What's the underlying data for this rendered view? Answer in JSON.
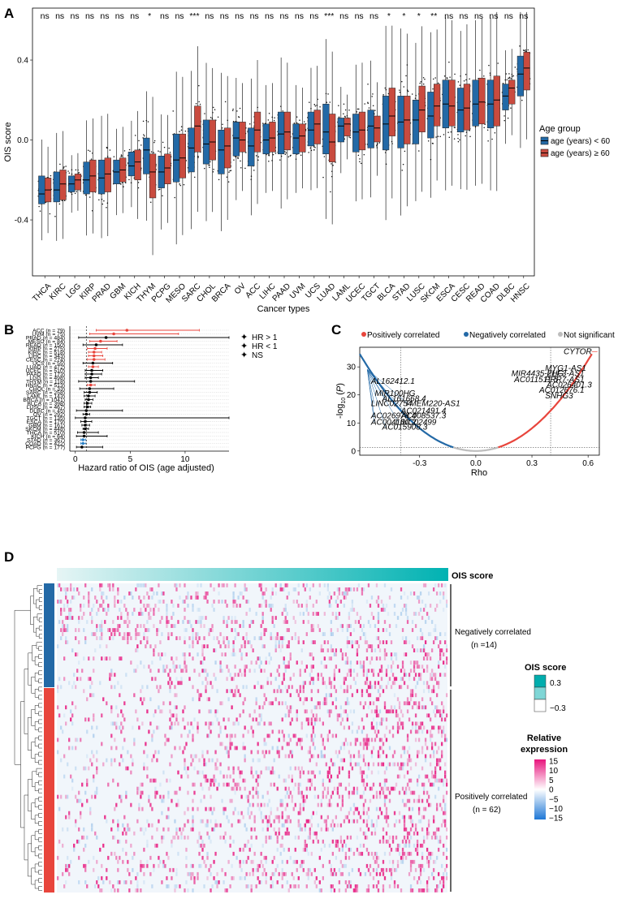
{
  "panel_labels": {
    "a": "A",
    "b": "B",
    "c": "C",
    "d": "D"
  },
  "chart_data": [
    {
      "type": "box",
      "panel": "A",
      "xlabel": "Cancer types",
      "ylabel": "OIS score",
      "ylim": [
        -0.68,
        0.66
      ],
      "yticks": [
        -0.4,
        0.0,
        0.4
      ],
      "ytick_labels": [
        "-0.4",
        "0.0",
        "0.4"
      ],
      "legend": {
        "title": "Age group",
        "entries": [
          {
            "label": "age (years) < 60",
            "color": "#2369a6"
          },
          {
            "label": "age (years) ≥ 60",
            "color": "#c94b3f"
          }
        ],
        "position": "right"
      },
      "categories": [
        "THCA",
        "KIRC",
        "LGG",
        "KIRP",
        "PRAD",
        "GBM",
        "KICH",
        "THYM",
        "PCPG",
        "MESO",
        "SARC",
        "CHOL",
        "BRCA",
        "OV",
        "ACC",
        "LIHC",
        "PAAD",
        "UVM",
        "UCS",
        "LUAD",
        "LAML",
        "UCEC",
        "TGCT",
        "BLCA",
        "STAD",
        "LUSC",
        "SKCM",
        "ESCA",
        "CESC",
        "READ",
        "COAD",
        "DLBC",
        "HNSC"
      ],
      "significance": [
        "ns",
        "ns",
        "ns",
        "ns",
        "ns",
        "ns",
        "ns",
        "*",
        "ns",
        "ns",
        "***",
        "ns",
        "ns",
        "ns",
        "ns",
        "ns",
        "ns",
        "ns",
        "ns",
        "***",
        "ns",
        "ns",
        "ns",
        "*",
        "*",
        "*",
        "**",
        "ns",
        "ns",
        "ns",
        "ns",
        "ns",
        "ns"
      ],
      "series": [
        {
          "name": "age (years) < 60",
          "median": [
            -0.27,
            -0.25,
            -0.22,
            -0.2,
            -0.19,
            -0.16,
            -0.13,
            -0.05,
            -0.16,
            -0.1,
            -0.04,
            -0.02,
            -0.05,
            0.01,
            -0.03,
            0.0,
            0.03,
            0.01,
            0.05,
            0.04,
            0.07,
            0.04,
            0.07,
            0.08,
            0.09,
            0.1,
            0.12,
            0.18,
            0.15,
            0.18,
            0.18,
            0.22,
            0.33
          ],
          "q1": [
            -0.32,
            -0.31,
            -0.26,
            -0.27,
            -0.27,
            -0.22,
            -0.18,
            -0.17,
            -0.24,
            -0.21,
            -0.16,
            -0.12,
            -0.17,
            -0.08,
            -0.13,
            -0.07,
            -0.07,
            -0.07,
            -0.03,
            -0.07,
            -0.01,
            -0.06,
            -0.04,
            -0.05,
            -0.04,
            -0.02,
            0.01,
            0.06,
            0.04,
            0.07,
            0.06,
            0.15,
            0.22
          ],
          "q3": [
            -0.18,
            -0.16,
            -0.18,
            -0.11,
            -0.1,
            -0.1,
            -0.06,
            0.01,
            -0.08,
            0.03,
            0.06,
            0.1,
            0.05,
            0.09,
            0.06,
            0.08,
            0.14,
            0.08,
            0.14,
            0.18,
            0.11,
            0.13,
            0.15,
            0.22,
            0.22,
            0.2,
            0.24,
            0.3,
            0.26,
            0.3,
            0.3,
            0.28,
            0.42
          ]
        },
        {
          "name": "age (years) ≥ 60",
          "median": [
            -0.25,
            -0.22,
            -0.2,
            -0.18,
            -0.17,
            -0.15,
            -0.11,
            -0.16,
            -0.14,
            -0.09,
            0.07,
            -0.01,
            -0.03,
            0.0,
            0.05,
            0.01,
            0.04,
            0.02,
            0.08,
            -0.01,
            0.08,
            0.05,
            0.06,
            0.12,
            0.1,
            0.15,
            0.17,
            0.17,
            0.16,
            0.19,
            0.2,
            0.26,
            0.36
          ],
          "q1": [
            -0.31,
            -0.3,
            -0.25,
            -0.26,
            -0.26,
            -0.21,
            -0.2,
            -0.29,
            -0.22,
            -0.19,
            -0.06,
            -0.1,
            -0.14,
            -0.06,
            -0.06,
            -0.06,
            -0.05,
            -0.06,
            -0.02,
            -0.11,
            0.02,
            -0.05,
            -0.01,
            0.02,
            -0.02,
            0.04,
            0.07,
            0.07,
            0.05,
            0.08,
            0.07,
            0.18,
            0.25
          ],
          "q3": [
            -0.19,
            -0.15,
            -0.17,
            -0.1,
            -0.09,
            -0.09,
            -0.05,
            -0.07,
            -0.07,
            0.03,
            0.17,
            0.1,
            0.06,
            0.09,
            0.14,
            0.09,
            0.14,
            0.08,
            0.15,
            0.13,
            0.11,
            0.14,
            0.12,
            0.26,
            0.22,
            0.27,
            0.28,
            0.3,
            0.28,
            0.31,
            0.32,
            0.3,
            0.44
          ]
        }
      ]
    },
    {
      "type": "forest",
      "panel": "B",
      "xlabel": "Hazard ratio of OIS (age adjusted)",
      "xlim": [
        -0.5,
        14
      ],
      "xticks": [
        0,
        5,
        10
      ],
      "xtick_labels": [
        "0",
        "5",
        "10"
      ],
      "legend": {
        "entries": [
          {
            "label": "HR > 1",
            "color": "#e8453c"
          },
          {
            "label": "HR < 1",
            "color": "#2a7fc4"
          },
          {
            "label": "NS",
            "color": "#000000"
          }
        ],
        "position": "top-right"
      },
      "rows": [
        {
          "label": "ACC (n = 79)",
          "hr": 4.7,
          "lo": 1.9,
          "hi": 11.3,
          "group": "up"
        },
        {
          "label": "UVM (n = 75)",
          "hr": 3.5,
          "lo": 1.3,
          "hi": 9.4,
          "group": "up"
        },
        {
          "label": "PRAD (n = 484)",
          "hr": 2.8,
          "lo": 0.3,
          "hi": 14.0,
          "group": "ns"
        },
        {
          "label": "MESO (n = 84)",
          "hr": 2.3,
          "lo": 1.3,
          "hi": 3.8,
          "group": "up"
        },
        {
          "label": "READ (n = 150)",
          "hr": 1.9,
          "lo": 0.7,
          "hi": 4.3,
          "group": "ns"
        },
        {
          "label": "KIRP (n = 275)",
          "hr": 1.8,
          "lo": 1.1,
          "hi": 2.9,
          "group": "up"
        },
        {
          "label": "KIRC (n = 518)",
          "hr": 1.7,
          "lo": 1.2,
          "hi": 2.4,
          "group": "up"
        },
        {
          "label": "LIHC (n = 343)",
          "hr": 1.7,
          "lo": 1.2,
          "hi": 2.5,
          "group": "up"
        },
        {
          "label": "CESC (n = 274)",
          "hr": 1.7,
          "lo": 1.1,
          "hi": 2.7,
          "group": "up"
        },
        {
          "label": "UCS (n = 55)",
          "hr": 1.6,
          "lo": 0.7,
          "hi": 3.4,
          "group": "ns"
        },
        {
          "label": "LUAD (n = 472)",
          "hr": 1.6,
          "lo": 1.2,
          "hi": 2.1,
          "group": "up"
        },
        {
          "label": "UCEC (n = 510)",
          "hr": 1.5,
          "lo": 0.9,
          "hi": 2.5,
          "group": "ns"
        },
        {
          "label": "PAAD (n = 173)",
          "hr": 1.5,
          "lo": 0.9,
          "hi": 2.4,
          "group": "ns"
        },
        {
          "label": "LGG (n = 498)",
          "hr": 1.4,
          "lo": 0.9,
          "hi": 2.1,
          "group": "ns"
        },
        {
          "label": "THYM (n = 118)",
          "hr": 1.4,
          "lo": 0.3,
          "hi": 5.4,
          "group": "ns"
        },
        {
          "label": "HNSC (n = 513)",
          "hr": 1.4,
          "lo": 1.1,
          "hi": 1.8,
          "group": "up"
        },
        {
          "label": "CHOL (n = 33)",
          "hr": 1.3,
          "lo": 0.4,
          "hi": 3.5,
          "group": "ns"
        },
        {
          "label": "SARC (n = 258)",
          "hr": 1.3,
          "lo": 0.8,
          "hi": 2.0,
          "group": "ns"
        },
        {
          "label": "LAML (n = 143)",
          "hr": 1.2,
          "lo": 0.8,
          "hi": 1.8,
          "group": "ns"
        },
        {
          "label": "BRCA (n = 1041)",
          "hr": 1.2,
          "lo": 0.9,
          "hi": 1.6,
          "group": "ns"
        },
        {
          "label": "BLCA (n = 398)",
          "hr": 1.1,
          "lo": 0.8,
          "hi": 1.5,
          "group": "ns"
        },
        {
          "label": "LUSC (n = 467)",
          "hr": 1.1,
          "lo": 0.8,
          "hi": 1.4,
          "group": "ns"
        },
        {
          "label": "DLBC (n = 45)",
          "hr": 1.0,
          "lo": 0.1,
          "hi": 4.3,
          "group": "ns"
        },
        {
          "label": "OV (n = 292)",
          "hr": 1.0,
          "lo": 0.7,
          "hi": 1.3,
          "group": "ns"
        },
        {
          "label": "TGCT (n = 135)",
          "hr": 0.9,
          "lo": 0.0,
          "hi": 14.0,
          "group": "ns"
        },
        {
          "label": "ESCA (n = 179)",
          "hr": 0.9,
          "lo": 0.5,
          "hi": 1.5,
          "group": "ns"
        },
        {
          "label": "GBM (n = 161)",
          "hr": 0.9,
          "lo": 0.6,
          "hi": 1.3,
          "group": "ns"
        },
        {
          "label": "SKCM (n = 448)",
          "hr": 0.9,
          "lo": 0.7,
          "hi": 1.2,
          "group": "ns"
        },
        {
          "label": "THCA (n = 510)",
          "hr": 0.8,
          "lo": 0.2,
          "hi": 2.1,
          "group": "ns"
        },
        {
          "label": "KICH (n = 64)",
          "hr": 0.8,
          "lo": 0.1,
          "hi": 2.9,
          "group": "ns"
        },
        {
          "label": "STAD (n = 367)",
          "hr": 0.7,
          "lo": 0.5,
          "hi": 0.95,
          "group": "down"
        },
        {
          "label": "COAD (n = 422)",
          "hr": 0.7,
          "lo": 0.5,
          "hi": 0.97,
          "group": "down"
        },
        {
          "label": "PCPG (n = 177)",
          "hr": 0.6,
          "lo": 0.1,
          "hi": 2.5,
          "group": "ns"
        }
      ]
    },
    {
      "type": "scatter",
      "panel": "C",
      "xlabel": "Rho",
      "ylabel": "-log10 (P)",
      "ylabel_parts": [
        "-log",
        "10",
        " (",
        "P",
        ")"
      ],
      "xlim": [
        -0.62,
        0.66
      ],
      "ylim": [
        -1.5,
        37
      ],
      "xticks": [
        -0.3,
        0.0,
        0.3,
        0.6
      ],
      "xtick_labels": [
        "-0.3",
        "0.0",
        "0.3",
        "0.6"
      ],
      "yticks": [
        0,
        10,
        20,
        30
      ],
      "ytick_labels": [
        "0",
        "10",
        "20",
        "30"
      ],
      "thresholds": {
        "rho": [
          -0.4,
          0.4
        ],
        "y": 1.3
      },
      "legend": {
        "entries": [
          {
            "label": "Positively correlated",
            "color": "#e8453c"
          },
          {
            "label": "Negatively correlated",
            "color": "#2369a6"
          },
          {
            "label": "Not significant",
            "color": "#bdbdbd"
          }
        ],
        "position": "top"
      },
      "positive_labels": [
        {
          "text": "CYTOR",
          "rho": 0.62,
          "y": 34.6
        },
        {
          "text": "MYG1-AS1",
          "rho": 0.59,
          "y": 28.6
        },
        {
          "text": "MIR4435-2HG",
          "rho": 0.47,
          "y": 26.7
        },
        {
          "text": "ELF3-AS1",
          "rho": 0.58,
          "y": 26.7
        },
        {
          "text": "AC011511.5",
          "rho": 0.44,
          "y": 24.6
        },
        {
          "text": "PRR7-AS1",
          "rho": 0.58,
          "y": 24.6
        },
        {
          "text": "AC026401.3",
          "rho": 0.62,
          "y": 22.6
        },
        {
          "text": "AC012676.1",
          "rho": 0.58,
          "y": 20.8
        },
        {
          "text": "SNHG3",
          "rho": 0.52,
          "y": 18.8
        }
      ],
      "negative_labels": [
        {
          "text": "AL162412.1",
          "rho": -0.56,
          "y": 24.0
        },
        {
          "text": "MIR100HG",
          "rho": -0.54,
          "y": 19.6
        },
        {
          "text": "AL161668.4",
          "rho": -0.5,
          "y": 17.8
        },
        {
          "text": "LINC02754",
          "rho": -0.56,
          "y": 16.0
        },
        {
          "text": "TMEM220-AS1",
          "rho": -0.38,
          "y": 16.0
        },
        {
          "text": "AC021491.4",
          "rho": -0.4,
          "y": 13.4
        },
        {
          "text": "AC026978.4",
          "rho": -0.56,
          "y": 11.6
        },
        {
          "text": "AC008537.3",
          "rho": -0.4,
          "y": 11.6
        },
        {
          "text": "AC004160.2",
          "rho": -0.56,
          "y": 9.4
        },
        {
          "text": "LINC02499",
          "rho": -0.43,
          "y": 9.4
        },
        {
          "text": "AC015908.3",
          "rho": -0.5,
          "y": 7.6
        }
      ]
    },
    {
      "type": "heatmap",
      "panel": "D",
      "annotation_title": "OIS score",
      "groups": [
        {
          "label": "Negatively correlated",
          "n_label": "(n =14)",
          "rows": 14,
          "color": "#2369a6"
        },
        {
          "label": "Positively correlated",
          "n_label": "(n = 62)",
          "rows": 62,
          "color": "#e8453c"
        }
      ],
      "ois_legend": {
        "title": "OIS score",
        "range_labels": [
          "0.3",
          "−0.3"
        ],
        "range": [
          -0.3,
          0.3
        ]
      },
      "expr_legend": {
        "title_lines": [
          "Relative",
          "expression"
        ],
        "tick_labels": [
          "15",
          "10",
          "5",
          "0",
          "−5",
          "−10",
          "−15"
        ],
        "range": [
          -15,
          15
        ]
      }
    }
  ]
}
